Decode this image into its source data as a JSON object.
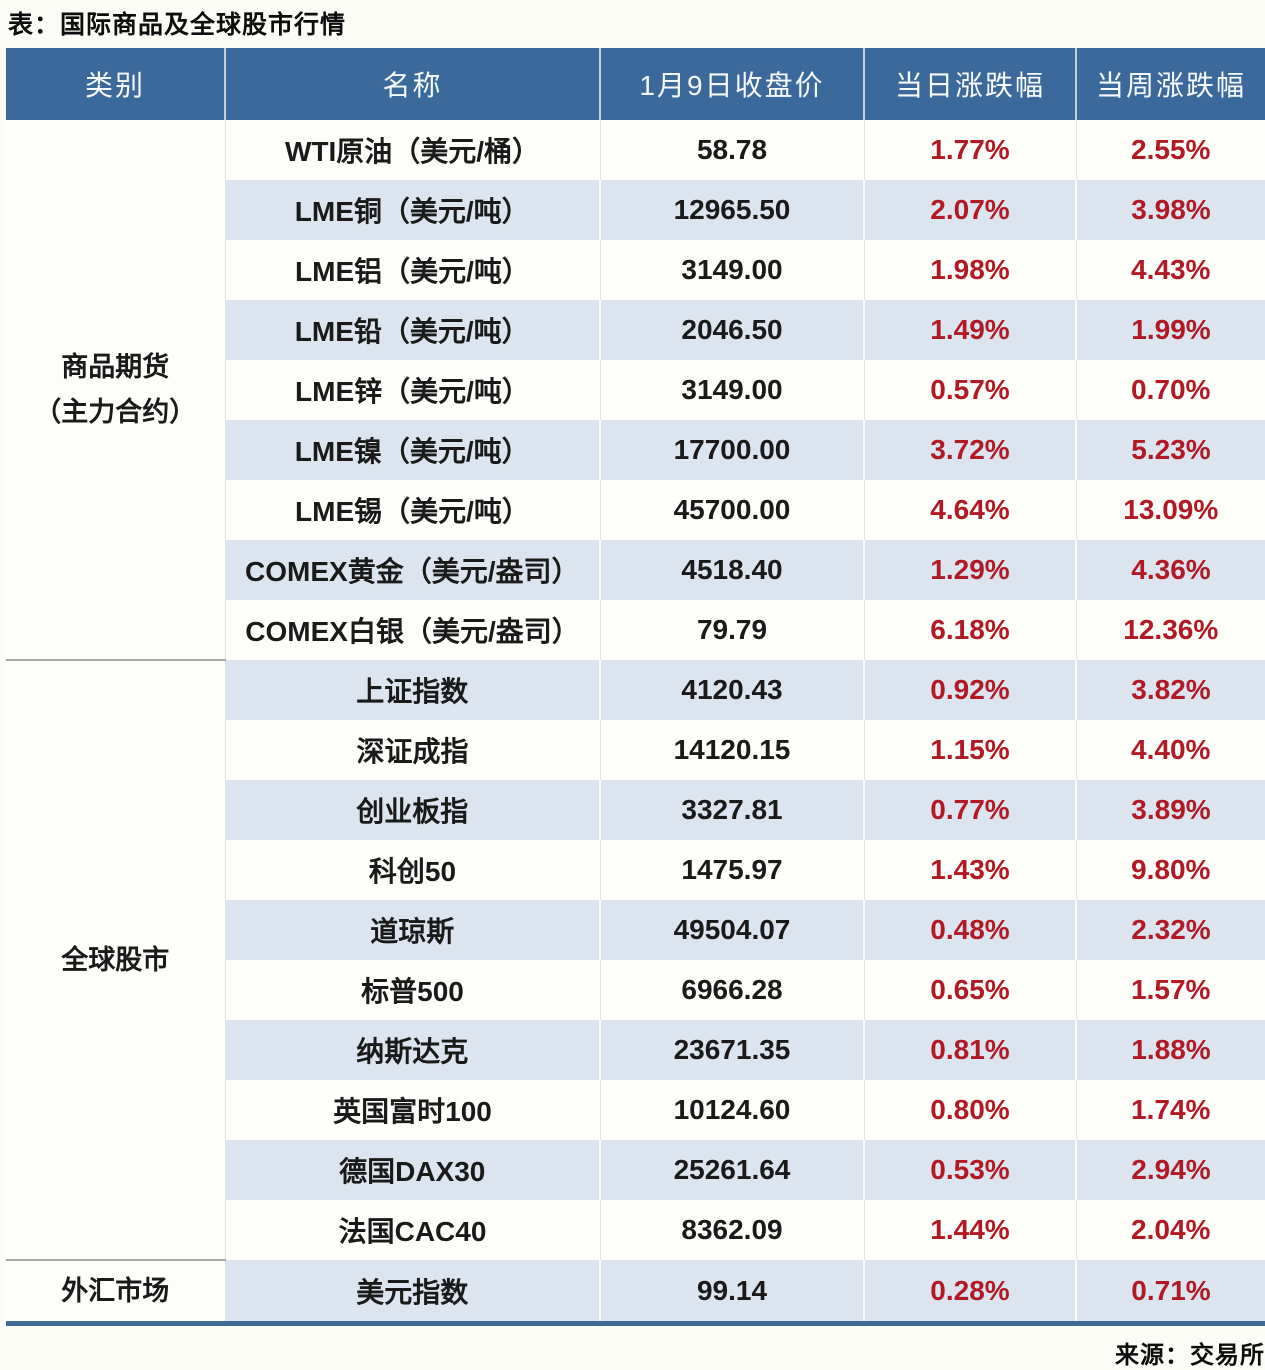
{
  "title": "表：国际商品及全球股市行情",
  "source": "来源：交易所",
  "category_display": [
    "商品期货\n（主力合约）",
    "全球股市",
    "外汇市场"
  ],
  "colors": {
    "header_bg": "#3C699B",
    "header_text": "#F7FAFC",
    "stripe_row_bg": "#DBE4EF",
    "white_row_bg": "#FDFDFA",
    "change_text_red": "#B11A24",
    "body_text": "#1A1A1A",
    "bottom_border_blue": "#3E6A93",
    "section_divider_gray": "#A6A6A6"
  },
  "chart_data": {
    "type": "table",
    "title": "国际商品及全球股市行情",
    "source": "交易所",
    "columns": [
      "类别",
      "名称",
      "1月9日收盘价",
      "当日涨跌幅",
      "当周涨跌幅"
    ],
    "sections": [
      {
        "category": "商品期货（主力合约）",
        "rows": [
          {
            "name": "WTI原油（美元/桶）",
            "close": "58.78",
            "day_change": "1.77%",
            "week_change": "2.55%"
          },
          {
            "name": "LME铜（美元/吨）",
            "close": "12965.50",
            "day_change": "2.07%",
            "week_change": "3.98%"
          },
          {
            "name": "LME铝（美元/吨）",
            "close": "3149.00",
            "day_change": "1.98%",
            "week_change": "4.43%"
          },
          {
            "name": "LME铅（美元/吨）",
            "close": "2046.50",
            "day_change": "1.49%",
            "week_change": "1.99%"
          },
          {
            "name": "LME锌（美元/吨）",
            "close": "3149.00",
            "day_change": "0.57%",
            "week_change": "0.70%"
          },
          {
            "name": "LME镍（美元/吨）",
            "close": "17700.00",
            "day_change": "3.72%",
            "week_change": "5.23%"
          },
          {
            "name": "LME锡（美元/吨）",
            "close": "45700.00",
            "day_change": "4.64%",
            "week_change": "13.09%"
          },
          {
            "name": "COMEX黄金（美元/盎司）",
            "close": "4518.40",
            "day_change": "1.29%",
            "week_change": "4.36%"
          },
          {
            "name": "COMEX白银（美元/盎司）",
            "close": "79.79",
            "day_change": "6.18%",
            "week_change": "12.36%"
          }
        ]
      },
      {
        "category": "全球股市",
        "rows": [
          {
            "name": "上证指数",
            "close": "4120.43",
            "day_change": "0.92%",
            "week_change": "3.82%"
          },
          {
            "name": "深证成指",
            "close": "14120.15",
            "day_change": "1.15%",
            "week_change": "4.40%"
          },
          {
            "name": "创业板指",
            "close": "3327.81",
            "day_change": "0.77%",
            "week_change": "3.89%"
          },
          {
            "name": "科创50",
            "close": "1475.97",
            "day_change": "1.43%",
            "week_change": "9.80%"
          },
          {
            "name": "道琼斯",
            "close": "49504.07",
            "day_change": "0.48%",
            "week_change": "2.32%"
          },
          {
            "name": "标普500",
            "close": "6966.28",
            "day_change": "0.65%",
            "week_change": "1.57%"
          },
          {
            "name": "纳斯达克",
            "close": "23671.35",
            "day_change": "0.81%",
            "week_change": "1.88%"
          },
          {
            "name": "英国富时100",
            "close": "10124.60",
            "day_change": "0.80%",
            "week_change": "1.74%"
          },
          {
            "name": "德国DAX30",
            "close": "25261.64",
            "day_change": "0.53%",
            "week_change": "2.94%"
          },
          {
            "name": "法国CAC40",
            "close": "8362.09",
            "day_change": "1.44%",
            "week_change": "2.04%"
          }
        ]
      },
      {
        "category": "外汇市场",
        "rows": [
          {
            "name": "美元指数",
            "close": "99.14",
            "day_change": "0.28%",
            "week_change": "0.71%"
          }
        ]
      }
    ]
  }
}
